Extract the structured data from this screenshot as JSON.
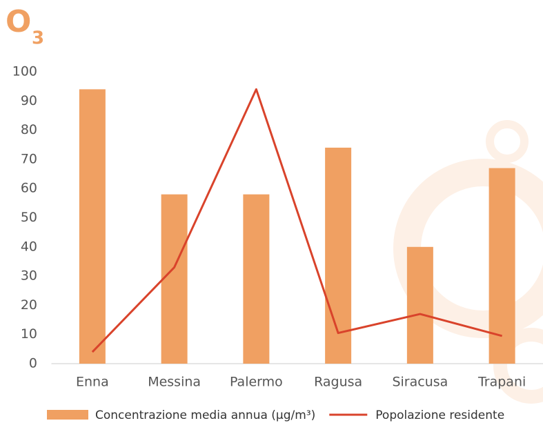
{
  "chart_data": {
    "type": "bar_line",
    "title": "O",
    "title_subscript": "3",
    "categories": [
      "Enna",
      "Messina",
      "Palermo",
      "Ragusa",
      "Siracusa",
      "Trapani"
    ],
    "series": [
      {
        "name": "Concentrazione media annua (µg/m³)",
        "type": "bar",
        "color": "#f0a062",
        "values": [
          94,
          58,
          58,
          74,
          40,
          67
        ]
      },
      {
        "name": "Popolazione residente",
        "type": "line",
        "color": "#d9432b",
        "values": [
          4,
          33,
          94,
          10.5,
          17,
          9.5
        ]
      }
    ],
    "ylim": [
      0,
      100
    ],
    "yticks": [
      0,
      10,
      20,
      30,
      40,
      50,
      60,
      70,
      80,
      90,
      100
    ],
    "grid": false,
    "legend": "bottom"
  }
}
